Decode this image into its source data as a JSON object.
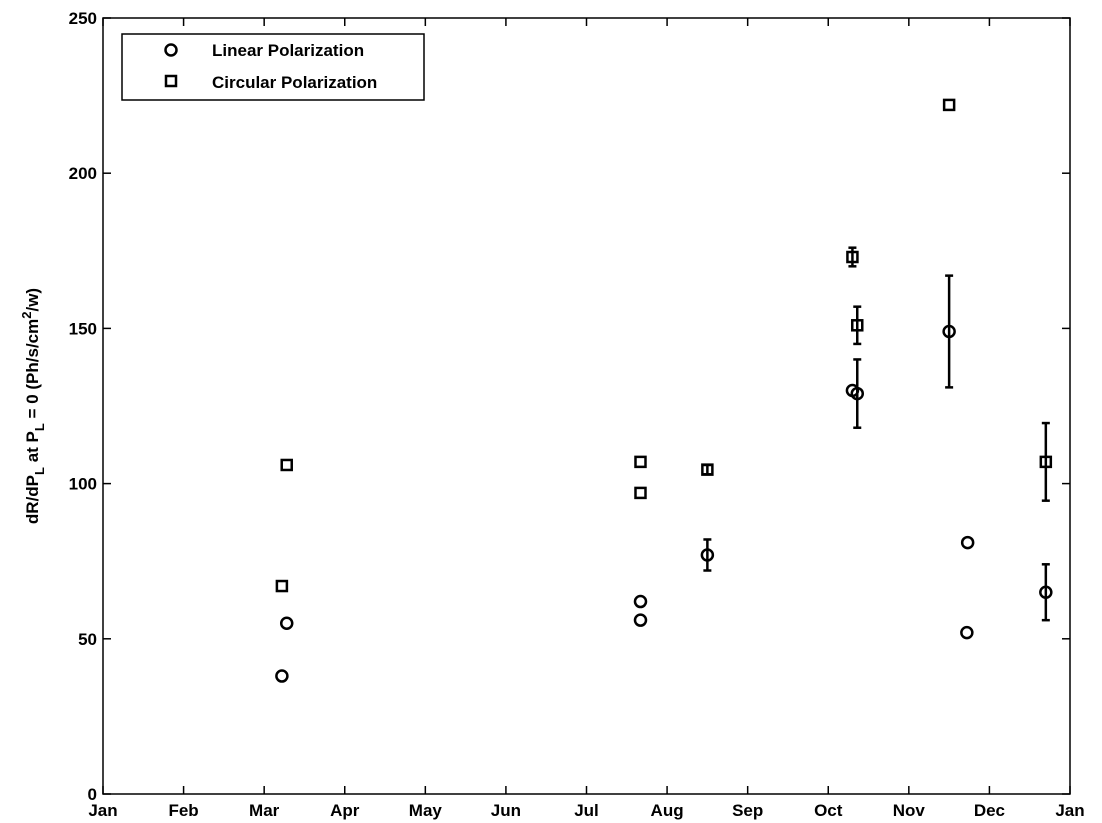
{
  "chart_data": {
    "type": "scatter",
    "xlabel": "",
    "ylabel": {
      "main": "dR/dP",
      "sub1": "L",
      "mid": " at P",
      "sub2": "L",
      "post": " = 0 (Ph/s/cm",
      "sup": "2",
      "end": "/w)"
    },
    "x_categories": [
      "Jan",
      "Feb",
      "Mar",
      "Apr",
      "May",
      "Jun",
      "Jul",
      "Aug",
      "Sep",
      "Oct",
      "Nov",
      "Dec",
      "Jan"
    ],
    "x_unit": "month index (0 = Jan, 12 = following Jan)",
    "xlim": [
      0,
      12
    ],
    "ylim": [
      0,
      250
    ],
    "yticks": [
      0,
      50,
      100,
      150,
      200,
      250
    ],
    "grid": false,
    "legend": {
      "position": "top-left",
      "entries": [
        {
          "marker": "circle",
          "label": "Linear Polarization"
        },
        {
          "marker": "square",
          "label": "Circular Polarization"
        }
      ]
    },
    "series": [
      {
        "name": "Linear Polarization",
        "marker": "circle",
        "points": [
          {
            "x": 2.22,
            "y": 38
          },
          {
            "x": 2.28,
            "y": 55
          },
          {
            "x": 6.67,
            "y": 56
          },
          {
            "x": 6.67,
            "y": 62
          },
          {
            "x": 7.5,
            "y": 77,
            "err": 5
          },
          {
            "x": 9.3,
            "y": 130
          },
          {
            "x": 9.36,
            "y": 129,
            "err": 11
          },
          {
            "x": 10.5,
            "y": 149,
            "err": 18
          },
          {
            "x": 10.72,
            "y": 52
          },
          {
            "x": 10.73,
            "y": 81
          },
          {
            "x": 11.7,
            "y": 65,
            "err": 9
          }
        ]
      },
      {
        "name": "Circular Polarization",
        "marker": "square",
        "points": [
          {
            "x": 2.22,
            "y": 67
          },
          {
            "x": 2.28,
            "y": 106
          },
          {
            "x": 6.67,
            "y": 97
          },
          {
            "x": 6.67,
            "y": 107
          },
          {
            "x": 7.5,
            "y": 104.5,
            "err": 1.5
          },
          {
            "x": 9.3,
            "y": 173,
            "err": 3
          },
          {
            "x": 9.36,
            "y": 151,
            "err": 6
          },
          {
            "x": 10.5,
            "y": 222
          },
          {
            "x": 11.7,
            "y": 107,
            "err": 12.5
          }
        ]
      }
    ]
  }
}
